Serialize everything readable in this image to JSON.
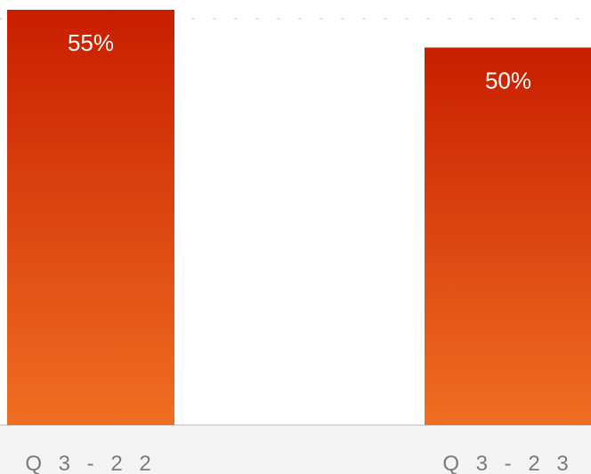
{
  "chart_data": {
    "type": "bar",
    "categories": [
      "Q3-22",
      "Q3-23"
    ],
    "tick_labels": [
      "Q 3 - 2 2",
      "Q 3 - 2 3"
    ],
    "values": [
      55,
      50
    ],
    "value_labels": [
      "55%",
      "50%"
    ],
    "title": "",
    "xlabel": "",
    "ylabel": "",
    "ylim": [
      0,
      55
    ],
    "grid": true,
    "colors": {
      "bar_top": "#c81e00",
      "bar_bottom": "#f06e22",
      "axis_band": "#f4f4f4",
      "tick_text": "#7b7b7b"
    }
  }
}
